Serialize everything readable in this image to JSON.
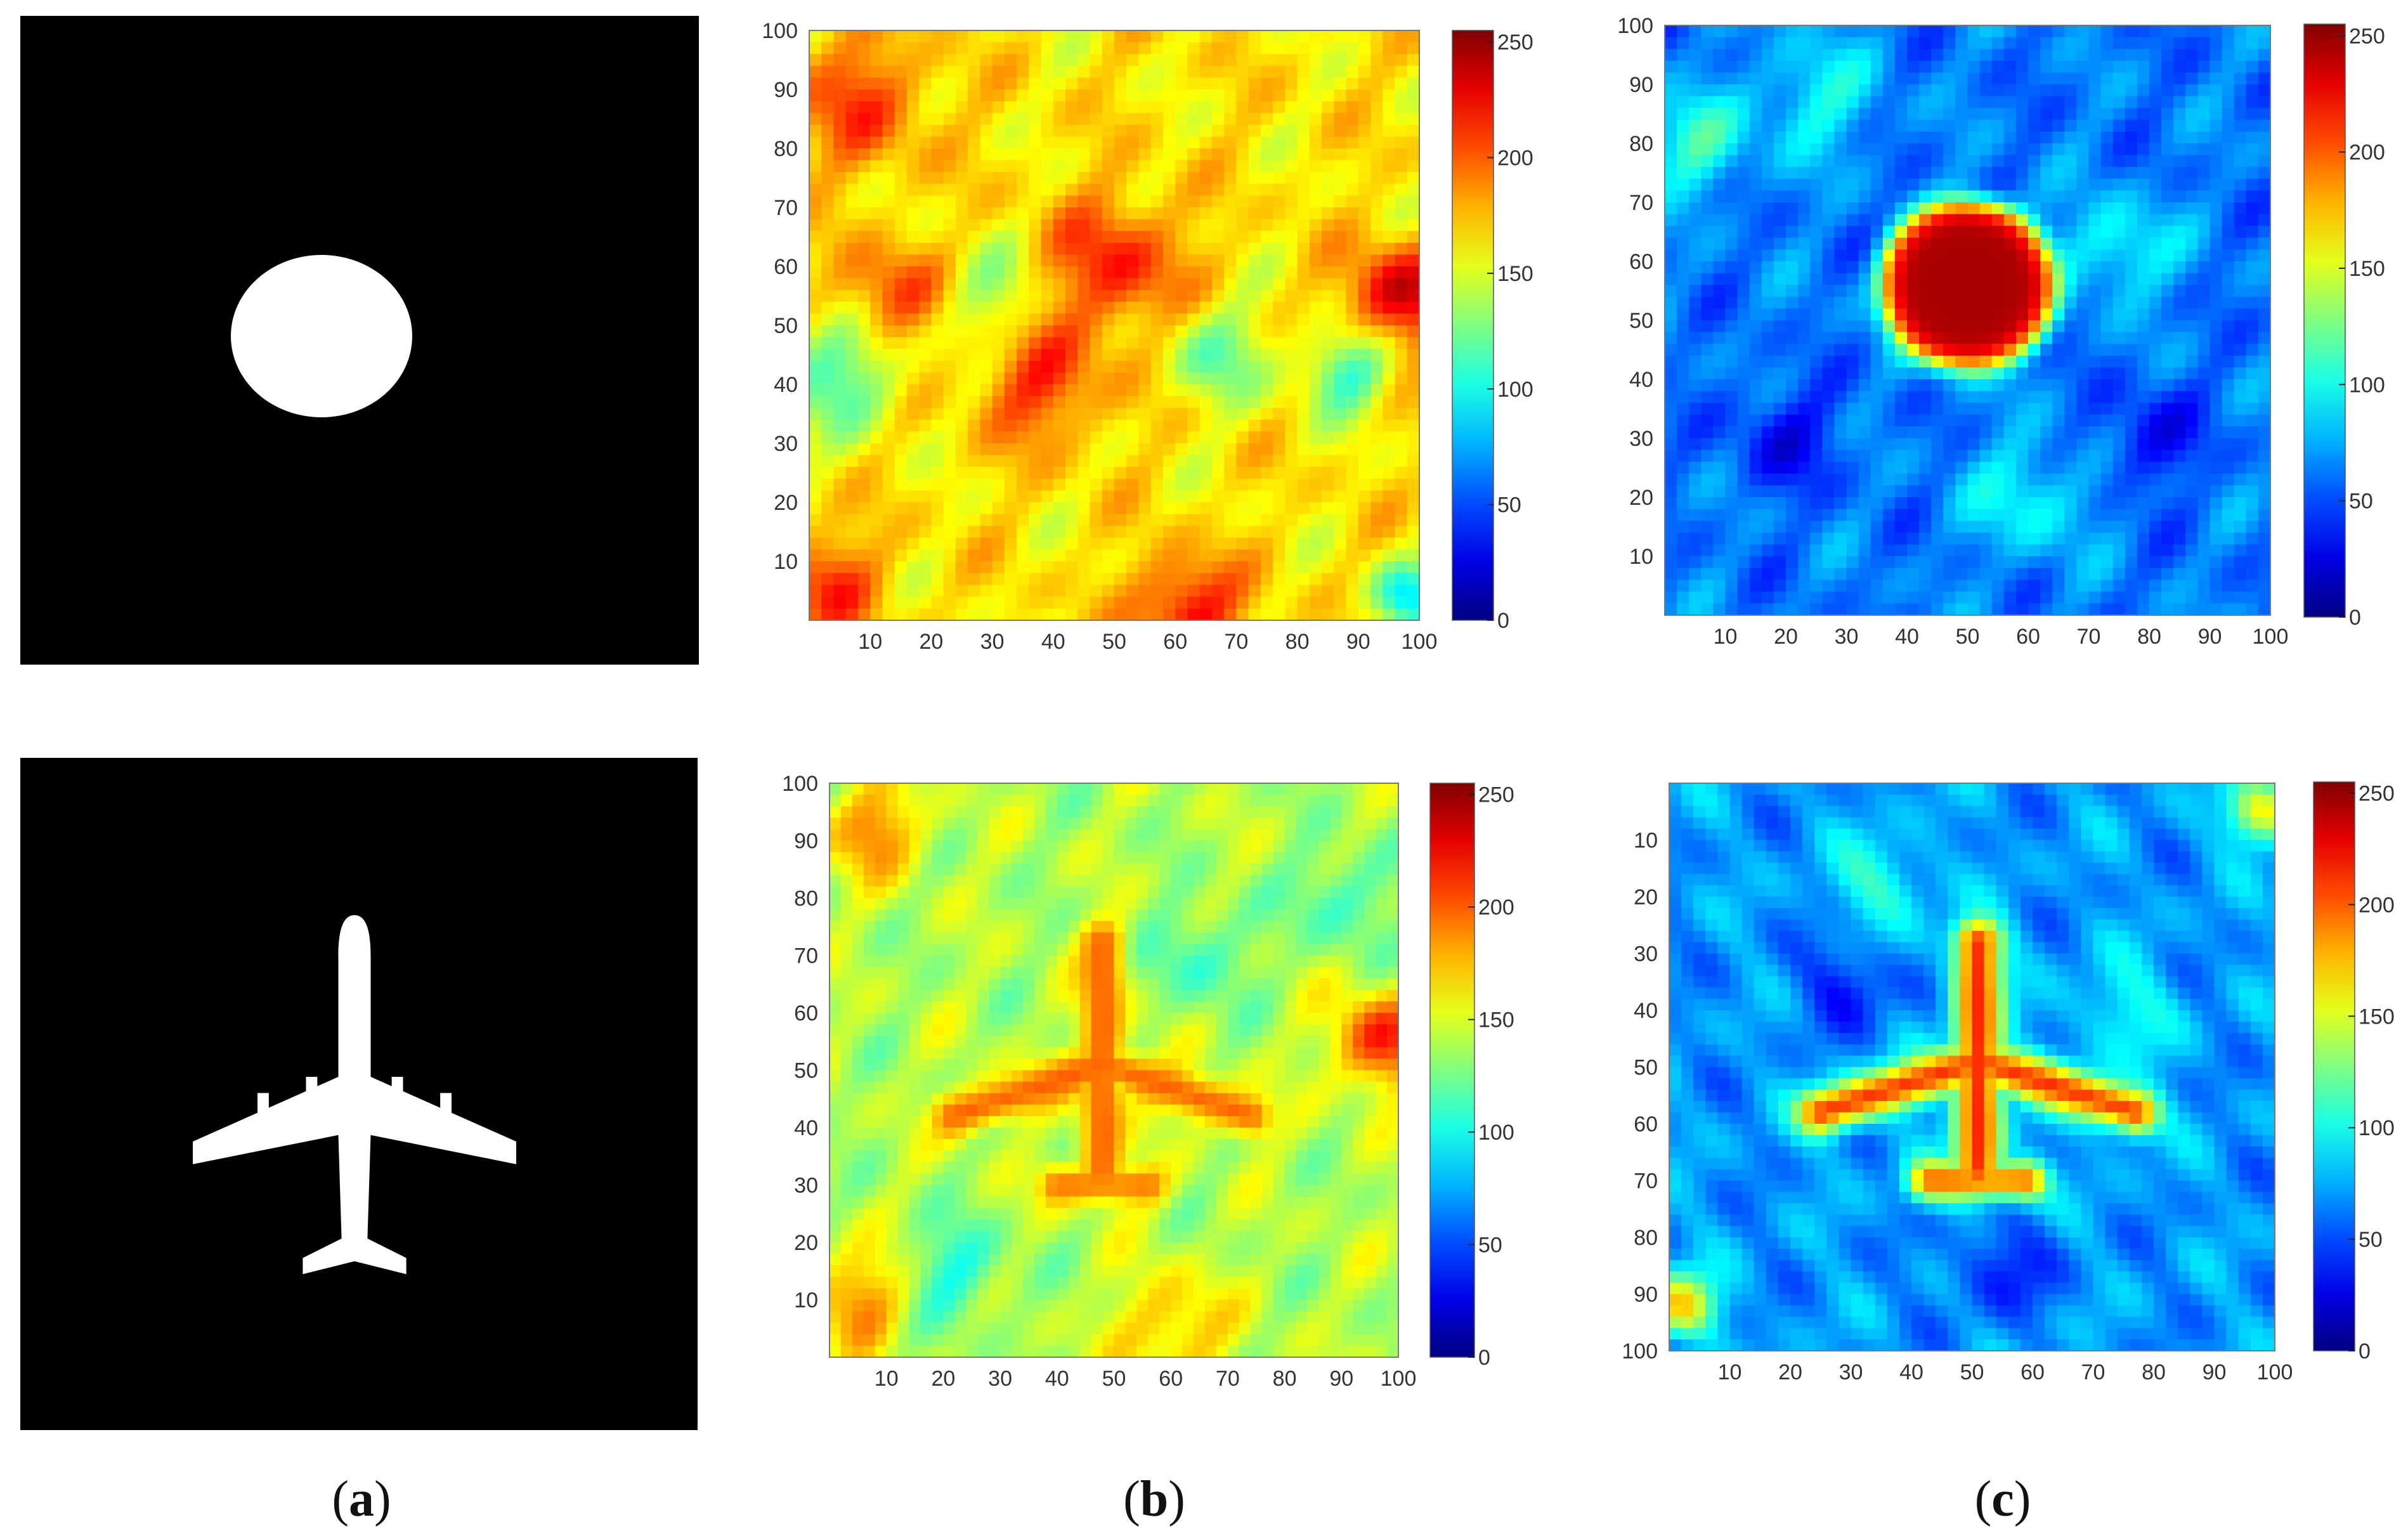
{
  "figure": {
    "captions": [
      "(a)",
      "(b)",
      "(c)"
    ],
    "caption_letters": [
      "a",
      "b",
      "c"
    ]
  },
  "chart_data": [
    {
      "type": "image",
      "panel": "a",
      "row": 1,
      "content": "binary silhouette: white disk on black background"
    },
    {
      "type": "heatmap",
      "panel": "b",
      "row": 1,
      "xlim": [
        0,
        100
      ],
      "ylim": [
        0,
        100
      ],
      "x_ticks": [
        10,
        20,
        30,
        40,
        50,
        60,
        70,
        80,
        90,
        100
      ],
      "y_ticks": [
        10,
        20,
        30,
        40,
        50,
        60,
        70,
        80,
        90,
        100
      ],
      "y_direction": "up",
      "colorbar": {
        "range": [
          0,
          255
        ],
        "ticks": [
          0,
          50,
          100,
          150,
          200,
          250
        ],
        "colormap": "jet"
      },
      "description_level": "high everywhere",
      "base_level": 165,
      "blobs": [
        {
          "x": 50,
          "y": 60,
          "value": 50,
          "spread": 8
        },
        {
          "x": 97,
          "y": 55,
          "value": 70,
          "spread": 6
        },
        {
          "x": 13,
          "y": 55,
          "value": 45,
          "spread": 6
        },
        {
          "x": 38,
          "y": 40,
          "value": 45,
          "spread": 7
        },
        {
          "x": 8,
          "y": 88,
          "value": 40,
          "spread": 8
        },
        {
          "x": 62,
          "y": 2,
          "value": 60,
          "spread": 6
        },
        {
          "x": 3,
          "y": 6,
          "value": 45,
          "spread": 6
        },
        {
          "x": 5,
          "y": 42,
          "value": -50,
          "spread": 7
        },
        {
          "x": 88,
          "y": 42,
          "value": -55,
          "spread": 5
        },
        {
          "x": 67,
          "y": 45,
          "value": -40,
          "spread": 6
        },
        {
          "x": 98,
          "y": 4,
          "value": -70,
          "spread": 4
        },
        {
          "x": 30,
          "y": 55,
          "value": -30,
          "spread": 6
        }
      ]
    },
    {
      "type": "heatmap",
      "panel": "c",
      "row": 1,
      "xlim": [
        0,
        100
      ],
      "ylim": [
        0,
        100
      ],
      "x_ticks": [
        10,
        20,
        30,
        40,
        50,
        60,
        70,
        80,
        90,
        100
      ],
      "y_ticks": [
        10,
        20,
        30,
        40,
        50,
        60,
        70,
        80,
        90,
        100
      ],
      "y_direction": "up",
      "colorbar": {
        "range": [
          0,
          255
        ],
        "ticks": [
          0,
          50,
          100,
          150,
          200,
          250
        ],
        "colormap": "jet"
      },
      "base_level": 62,
      "target": {
        "shape": "disk",
        "center_x": 50,
        "center_y": 56,
        "radius": 14,
        "value": 245
      },
      "blobs": [
        {
          "x": 5,
          "y": 80,
          "value": 45,
          "spread": 6
        },
        {
          "x": 75,
          "y": 62,
          "value": 40,
          "spread": 6
        },
        {
          "x": 25,
          "y": 88,
          "value": 35,
          "spread": 7
        },
        {
          "x": 60,
          "y": 20,
          "value": 35,
          "spread": 7
        },
        {
          "x": 20,
          "y": 30,
          "value": -30,
          "spread": 6
        },
        {
          "x": 80,
          "y": 30,
          "value": -30,
          "spread": 6
        }
      ]
    },
    {
      "type": "image",
      "panel": "a",
      "row": 2,
      "content": "binary silhouette: white airplane on black background"
    },
    {
      "type": "heatmap",
      "panel": "b",
      "row": 2,
      "xlim": [
        0,
        100
      ],
      "ylim": [
        0,
        100
      ],
      "x_ticks": [
        10,
        20,
        30,
        40,
        50,
        60,
        70,
        80,
        90,
        100
      ],
      "y_ticks": [
        10,
        20,
        30,
        40,
        50,
        60,
        70,
        80,
        90,
        100
      ],
      "y_direction": "up",
      "colorbar": {
        "range": [
          0,
          255
        ],
        "ticks": [
          0,
          50,
          100,
          150,
          200,
          250
        ],
        "colormap": "jet"
      },
      "base_level": 140,
      "target": {
        "shape": "airplane",
        "center_x": 48,
        "center_y": 50,
        "value": 205
      },
      "blobs": [
        {
          "x": 97,
          "y": 55,
          "value": 75,
          "spread": 6
        },
        {
          "x": 8,
          "y": 92,
          "value": 50,
          "spread": 6
        },
        {
          "x": 5,
          "y": 10,
          "value": 50,
          "spread": 6
        },
        {
          "x": 60,
          "y": 5,
          "value": 40,
          "spread": 7
        },
        {
          "x": 22,
          "y": 15,
          "value": -35,
          "spread": 6
        },
        {
          "x": 65,
          "y": 70,
          "value": -30,
          "spread": 6
        },
        {
          "x": 90,
          "y": 80,
          "value": -30,
          "spread": 6
        }
      ]
    },
    {
      "type": "heatmap",
      "panel": "c",
      "row": 2,
      "xlim": [
        0,
        100
      ],
      "ylim": [
        0,
        100
      ],
      "x_ticks": [
        10,
        20,
        30,
        40,
        50,
        60,
        70,
        80,
        90,
        100
      ],
      "y_ticks": [
        10,
        20,
        30,
        40,
        50,
        60,
        70,
        80,
        90,
        100
      ],
      "y_direction": "down",
      "colorbar": {
        "range": [
          0,
          255
        ],
        "ticks": [
          0,
          50,
          100,
          150,
          200,
          250
        ],
        "colormap": "jet"
      },
      "base_level": 70,
      "target": {
        "shape": "airplane",
        "center_x": 51,
        "center_y": 50,
        "value": 225
      },
      "blobs": [
        {
          "x": 2,
          "y": 92,
          "value": 100,
          "spread": 4
        },
        {
          "x": 98,
          "y": 5,
          "value": 95,
          "spread": 4
        },
        {
          "x": 35,
          "y": 18,
          "value": 35,
          "spread": 6
        },
        {
          "x": 75,
          "y": 40,
          "value": 30,
          "spread": 6
        },
        {
          "x": 30,
          "y": 35,
          "value": -30,
          "spread": 6
        },
        {
          "x": 55,
          "y": 85,
          "value": -30,
          "spread": 6
        }
      ]
    }
  ]
}
